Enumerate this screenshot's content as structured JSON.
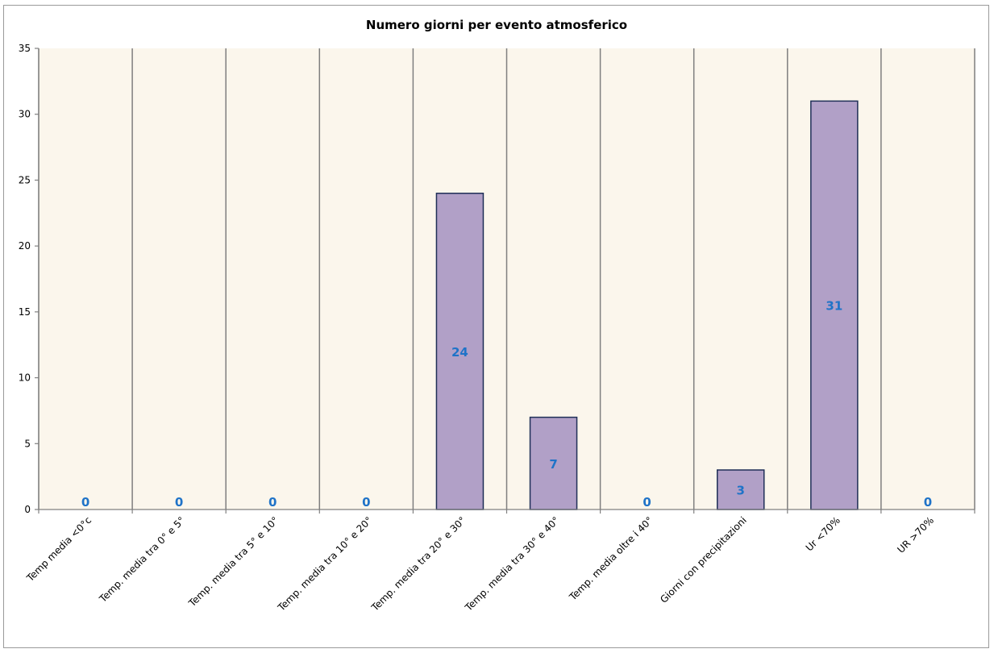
{
  "chart_data": {
    "type": "bar",
    "title": "Numero giorni  per evento atmosferico",
    "xlabel": "",
    "ylabel": "",
    "categories": [
      "Temp media <0°c",
      "Temp. media tra 0° e 5°",
      "Temp. media tra 5° e 10°",
      "Temp. media tra 10° e 20°",
      "Temp. media tra 20° e 30°",
      "Temp. media tra 30° e 40°",
      "Temp. media oltre i 40°",
      "Giorni con precipitazioni",
      "Ur  <70%",
      "UR >70%"
    ],
    "values": [
      0,
      0,
      0,
      0,
      24,
      7,
      0,
      3,
      31,
      0
    ],
    "data_labels": [
      "0",
      "0",
      "0",
      "0",
      "24",
      "7",
      "0",
      "3",
      "31",
      "0"
    ],
    "ylim": [
      0,
      35
    ],
    "yticks": [
      0,
      5,
      10,
      15,
      20,
      25,
      30,
      35
    ],
    "ytick_labels": [
      "0",
      "5",
      "10",
      "15",
      "20",
      "25",
      "30",
      "35"
    ],
    "grid": "vertical",
    "legend": "none",
    "colors": {
      "bar_fill": "#b1a0c7",
      "bar_stroke": "#1f2f57",
      "plot_background": "#fbf6ec",
      "gridline": "#7f7f7f",
      "data_label": "#1f73c8"
    }
  }
}
